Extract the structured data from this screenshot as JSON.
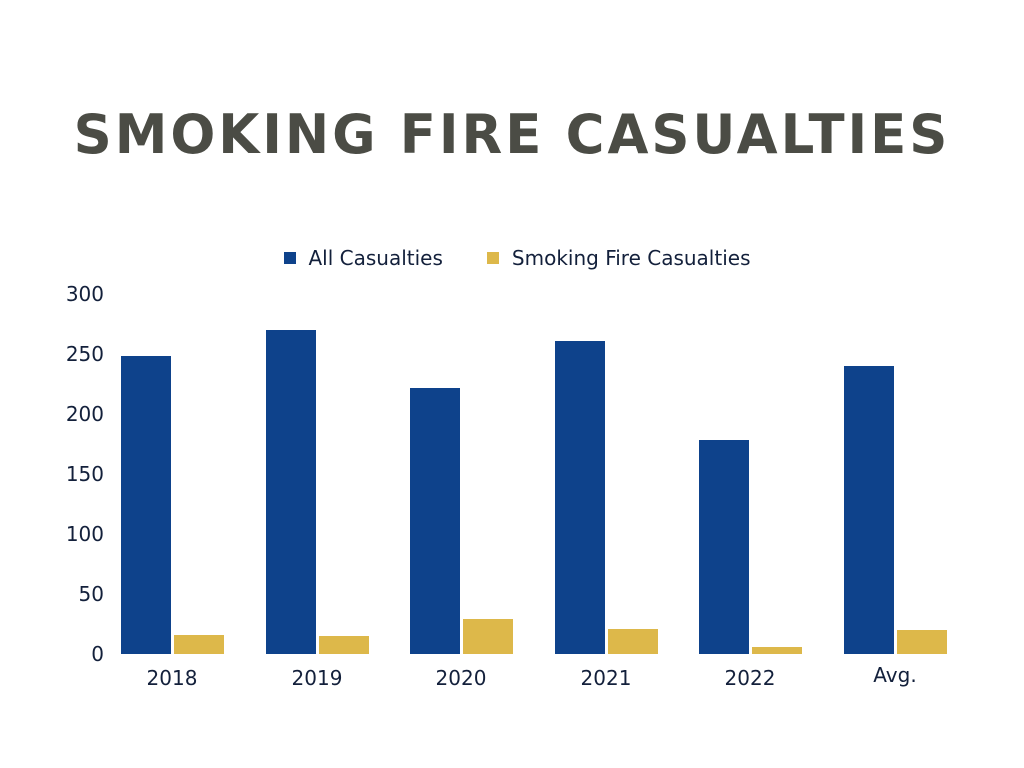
{
  "chart_data": {
    "type": "bar",
    "title": "SMOKING FIRE CASUALTIES",
    "categories": [
      "2018",
      "2019",
      "2020",
      "2021",
      "2022",
      "Avg."
    ],
    "series": [
      {
        "name": "All Casualties",
        "color": "#0e428b",
        "values": [
          248,
          270,
          222,
          261,
          178,
          240
        ]
      },
      {
        "name": "Smoking Fire Casualties",
        "color": "#ddb84a",
        "values": [
          16,
          15,
          29,
          21,
          6,
          20
        ]
      }
    ],
    "xlabel": "",
    "ylabel": "",
    "ylim": [
      0,
      300
    ],
    "yticks": [
      0,
      50,
      100,
      150,
      200,
      250,
      300
    ],
    "grid": false,
    "legend_position": "top"
  },
  "title": "SMOKING FIRE CASUALTIES",
  "legend": [
    {
      "label": "All Casualties",
      "color": "#0e428b"
    },
    {
      "label": "Smoking Fire Casualties",
      "color": "#ddb84a"
    }
  ],
  "yaxis": {
    "ticks": [
      "300",
      "250",
      "200",
      "150",
      "100",
      "50",
      "0"
    ]
  },
  "xaxis": {
    "labels": [
      "2018",
      "2019",
      "2020",
      "2021",
      "2022",
      "Avg."
    ]
  }
}
